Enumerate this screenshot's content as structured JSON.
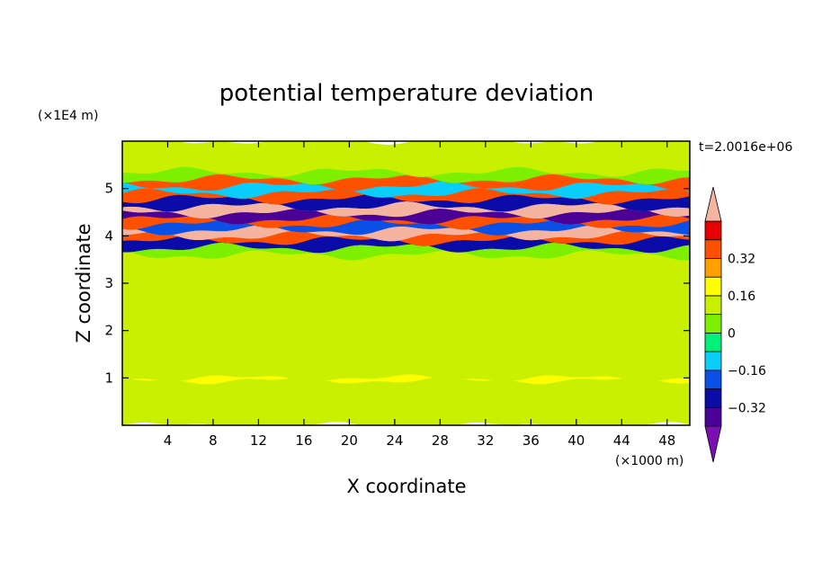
{
  "chart_data": {
    "type": "heatmap",
    "title": "potential temperature deviation",
    "xlabel": "X coordinate",
    "ylabel": "Z coordinate",
    "x_unit": "(×1000 m)",
    "y_unit": "(×1E4 m)",
    "time_label": "t=2.0016e+06",
    "xlim": [
      0,
      50
    ],
    "ylim": [
      0,
      6
    ],
    "x_ticks": [
      4,
      8,
      12,
      16,
      20,
      24,
      28,
      32,
      36,
      40,
      44,
      48
    ],
    "y_ticks": [
      1,
      2,
      3,
      4,
      5
    ],
    "x_tick_labels": [
      "4",
      "8",
      "12",
      "16",
      "20",
      "24",
      "28",
      "32",
      "36",
      "40",
      "44",
      "48"
    ],
    "y_tick_labels": [
      "1",
      "2",
      "3",
      "4",
      "5"
    ],
    "colorbar": {
      "levels": [
        -0.48,
        -0.4,
        -0.32,
        -0.24,
        -0.16,
        -0.08,
        0,
        0.08,
        0.16,
        0.24,
        0.32,
        0.4
      ],
      "colors": [
        "#7B0FB4",
        "#4B0096",
        "#0B0BA8",
        "#0A50E6",
        "#0ACDFA",
        "#00F078",
        "#7DF000",
        "#C8F000",
        "#FFFF00",
        "#FFA000",
        "#FF5000",
        "#E60000",
        "#F5B4A0"
      ],
      "tick_values": [
        0.32,
        0.16,
        0,
        -0.16,
        -0.32
      ],
      "tick_labels": [
        "0.32",
        "0.16",
        "0",
        "−0.16",
        "−0.32"
      ],
      "extend": "both"
    },
    "bands": [
      {
        "z": [
          0.0,
          0.95
        ],
        "value": 0.0
      },
      {
        "z": [
          0.95,
          1.0
        ],
        "value": 0.08
      },
      {
        "z": [
          1.0,
          2.6
        ],
        "value": 0.04
      },
      {
        "z": [
          2.6,
          3.4
        ],
        "value": 0.03
      },
      {
        "z": [
          3.4,
          3.6
        ],
        "value": 0.0
      },
      {
        "z": [
          3.6,
          3.75
        ],
        "value": -0.05
      },
      {
        "z": [
          3.75,
          3.9
        ],
        "value": -0.38
      },
      {
        "z": [
          3.9,
          4.0
        ],
        "value": 0.26
      },
      {
        "z": [
          4.0,
          4.12
        ],
        "value": 0.45
      },
      {
        "z": [
          4.12,
          4.25
        ],
        "value": -0.3
      },
      {
        "z": [
          4.25,
          4.35
        ],
        "value": 0.3
      },
      {
        "z": [
          4.35,
          4.48
        ],
        "value": -0.42
      },
      {
        "z": [
          4.48,
          4.62
        ],
        "value": 0.45
      },
      {
        "z": [
          4.62,
          4.78
        ],
        "value": -0.36
      },
      {
        "z": [
          4.78,
          4.9
        ],
        "value": 0.28
      },
      {
        "z": [
          4.9,
          5.05
        ],
        "value": -0.22
      },
      {
        "z": [
          5.05,
          5.2
        ],
        "value": 0.3
      },
      {
        "z": [
          5.2,
          5.35
        ],
        "value": -0.05
      },
      {
        "z": [
          5.35,
          6.0
        ],
        "value": 0.03
      }
    ]
  }
}
